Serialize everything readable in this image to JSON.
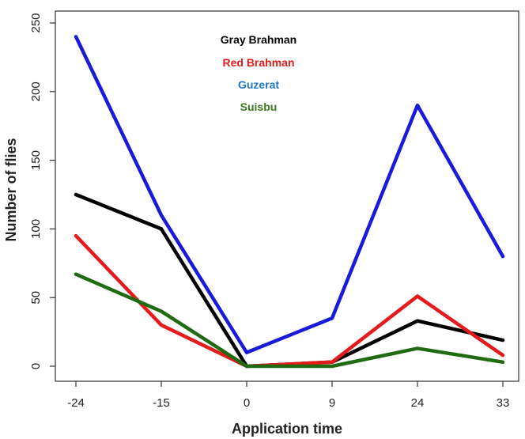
{
  "chart_data": {
    "type": "line",
    "title": "",
    "xlabel": "Application time",
    "ylabel": "Number of flies",
    "x": [
      "-24",
      "-15",
      "0",
      "9",
      "24",
      "33"
    ],
    "ylim": [
      0,
      250
    ],
    "yticks": [
      "0",
      "50",
      "100",
      "150",
      "200",
      "250"
    ],
    "grid": false,
    "legend_position": "top-center",
    "series": [
      {
        "name": "Gray Brahman",
        "color": "#000000",
        "values": [
          125,
          100,
          0,
          3,
          33,
          19
        ]
      },
      {
        "name": "Red Brahman",
        "color": "#e41a1c",
        "values": [
          95,
          30,
          0,
          3,
          51,
          8
        ]
      },
      {
        "name": "Guzerat",
        "color": "#1a1adb",
        "values": [
          240,
          110,
          10,
          35,
          190,
          80
        ]
      },
      {
        "name": "Suisbu",
        "color": "#1f6b12",
        "values": [
          67,
          40,
          0,
          0,
          13,
          3
        ]
      }
    ],
    "legend_colors": [
      "#000000",
      "#e41a1c",
      "#1f78c8",
      "#3a7a1e"
    ]
  }
}
